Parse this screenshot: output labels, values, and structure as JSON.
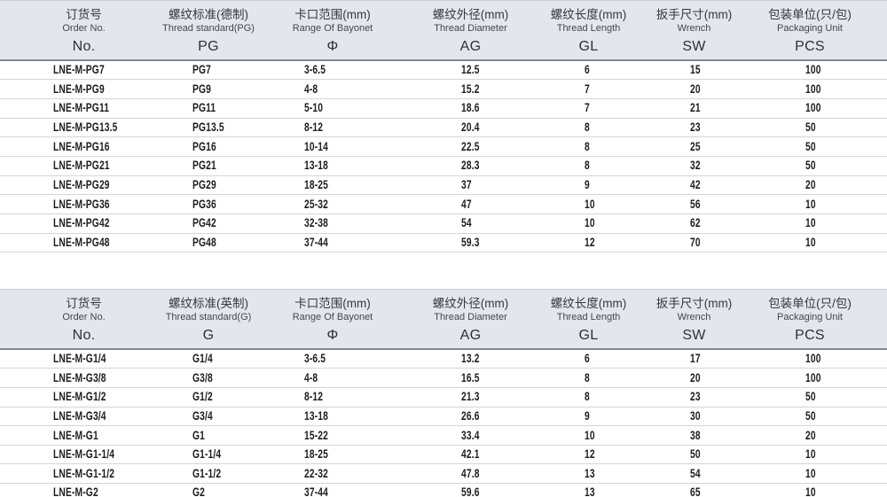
{
  "colors": {
    "header_background": "#e3e6ec",
    "header_rule": "#85878b",
    "row_separator": "#d4d5d7",
    "data_text": "#1d1d1f"
  },
  "tables": [
    {
      "name": "metric-pg-thread-table",
      "headers": [
        {
          "zh": "订货号",
          "en": "Order No.",
          "code": "No."
        },
        {
          "zh": "螺纹标准(德制)",
          "en": "Thread standard(PG)",
          "code": "PG"
        },
        {
          "zh": "卡口范围(mm)",
          "en": "Range Of Bayonet",
          "code": "Φ"
        },
        {
          "zh": "螺纹外径(mm)",
          "en": "Thread Diameter",
          "code": "AG"
        },
        {
          "zh": "螺纹长度(mm)",
          "en": "Thread Length",
          "code": "GL"
        },
        {
          "zh": "扳手尺寸(mm)",
          "en": "Wrench",
          "code": "SW"
        },
        {
          "zh": "包装单位(只/包)",
          "en": "Packaging Unit",
          "code": "PCS"
        }
      ],
      "rows": [
        [
          "LNE-M-PG7",
          "PG7",
          "3-6.5",
          "12.5",
          "6",
          "15",
          "100"
        ],
        [
          "LNE-M-PG9",
          "PG9",
          "4-8",
          "15.2",
          "7",
          "20",
          "100"
        ],
        [
          "LNE-M-PG11",
          "PG11",
          "5-10",
          "18.6",
          "7",
          "21",
          "100"
        ],
        [
          "LNE-M-PG13.5",
          "PG13.5",
          "8-12",
          "20.4",
          "8",
          "23",
          "50"
        ],
        [
          "LNE-M-PG16",
          "PG16",
          "10-14",
          "22.5",
          "8",
          "25",
          "50"
        ],
        [
          "LNE-M-PG21",
          "PG21",
          "13-18",
          "28.3",
          "8",
          "32",
          "50"
        ],
        [
          "LNE-M-PG29",
          "PG29",
          "18-25",
          "37",
          "9",
          "42",
          "20"
        ],
        [
          "LNE-M-PG36",
          "PG36",
          "25-32",
          "47",
          "10",
          "56",
          "10"
        ],
        [
          "LNE-M-PG42",
          "PG42",
          "32-38",
          "54",
          "10",
          "62",
          "10"
        ],
        [
          "LNE-M-PG48",
          "PG48",
          "37-44",
          "59.3",
          "12",
          "70",
          "10"
        ]
      ]
    },
    {
      "name": "g-thread-table",
      "headers": [
        {
          "zh": "订货号",
          "en": "Order No.",
          "code": "No."
        },
        {
          "zh": "螺纹标准(英制)",
          "en": "Thread standard(G)",
          "code": "G"
        },
        {
          "zh": "卡口范围(mm)",
          "en": "Range Of Bayonet",
          "code": "Φ"
        },
        {
          "zh": "螺纹外径(mm)",
          "en": "Thread Diameter",
          "code": "AG"
        },
        {
          "zh": "螺纹长度(mm)",
          "en": "Thread Length",
          "code": "GL"
        },
        {
          "zh": "扳手尺寸(mm)",
          "en": "Wrench",
          "code": "SW"
        },
        {
          "zh": "包装单位(只/包)",
          "en": "Packaging Unit",
          "code": "PCS"
        }
      ],
      "rows": [
        [
          "LNE-M-G1/4",
          "G1/4",
          "3-6.5",
          "13.2",
          "6",
          "17",
          "100"
        ],
        [
          "LNE-M-G3/8",
          "G3/8",
          "4-8",
          "16.5",
          "8",
          "20",
          "100"
        ],
        [
          "LNE-M-G1/2",
          "G1/2",
          "8-12",
          "21.3",
          "8",
          "23",
          "50"
        ],
        [
          "LNE-M-G3/4",
          "G3/4",
          "13-18",
          "26.6",
          "9",
          "30",
          "50"
        ],
        [
          "LNE-M-G1",
          "G1",
          "15-22",
          "33.4",
          "10",
          "38",
          "20"
        ],
        [
          "LNE-M-G1-1/4",
          "G1-1/4",
          "18-25",
          "42.1",
          "12",
          "50",
          "10"
        ],
        [
          "LNE-M-G1-1/2",
          "G1-1/2",
          "22-32",
          "47.8",
          "13",
          "54",
          "10"
        ],
        [
          "LNE-M-G2",
          "G2",
          "37-44",
          "59.6",
          "13",
          "65",
          "10"
        ]
      ]
    }
  ]
}
